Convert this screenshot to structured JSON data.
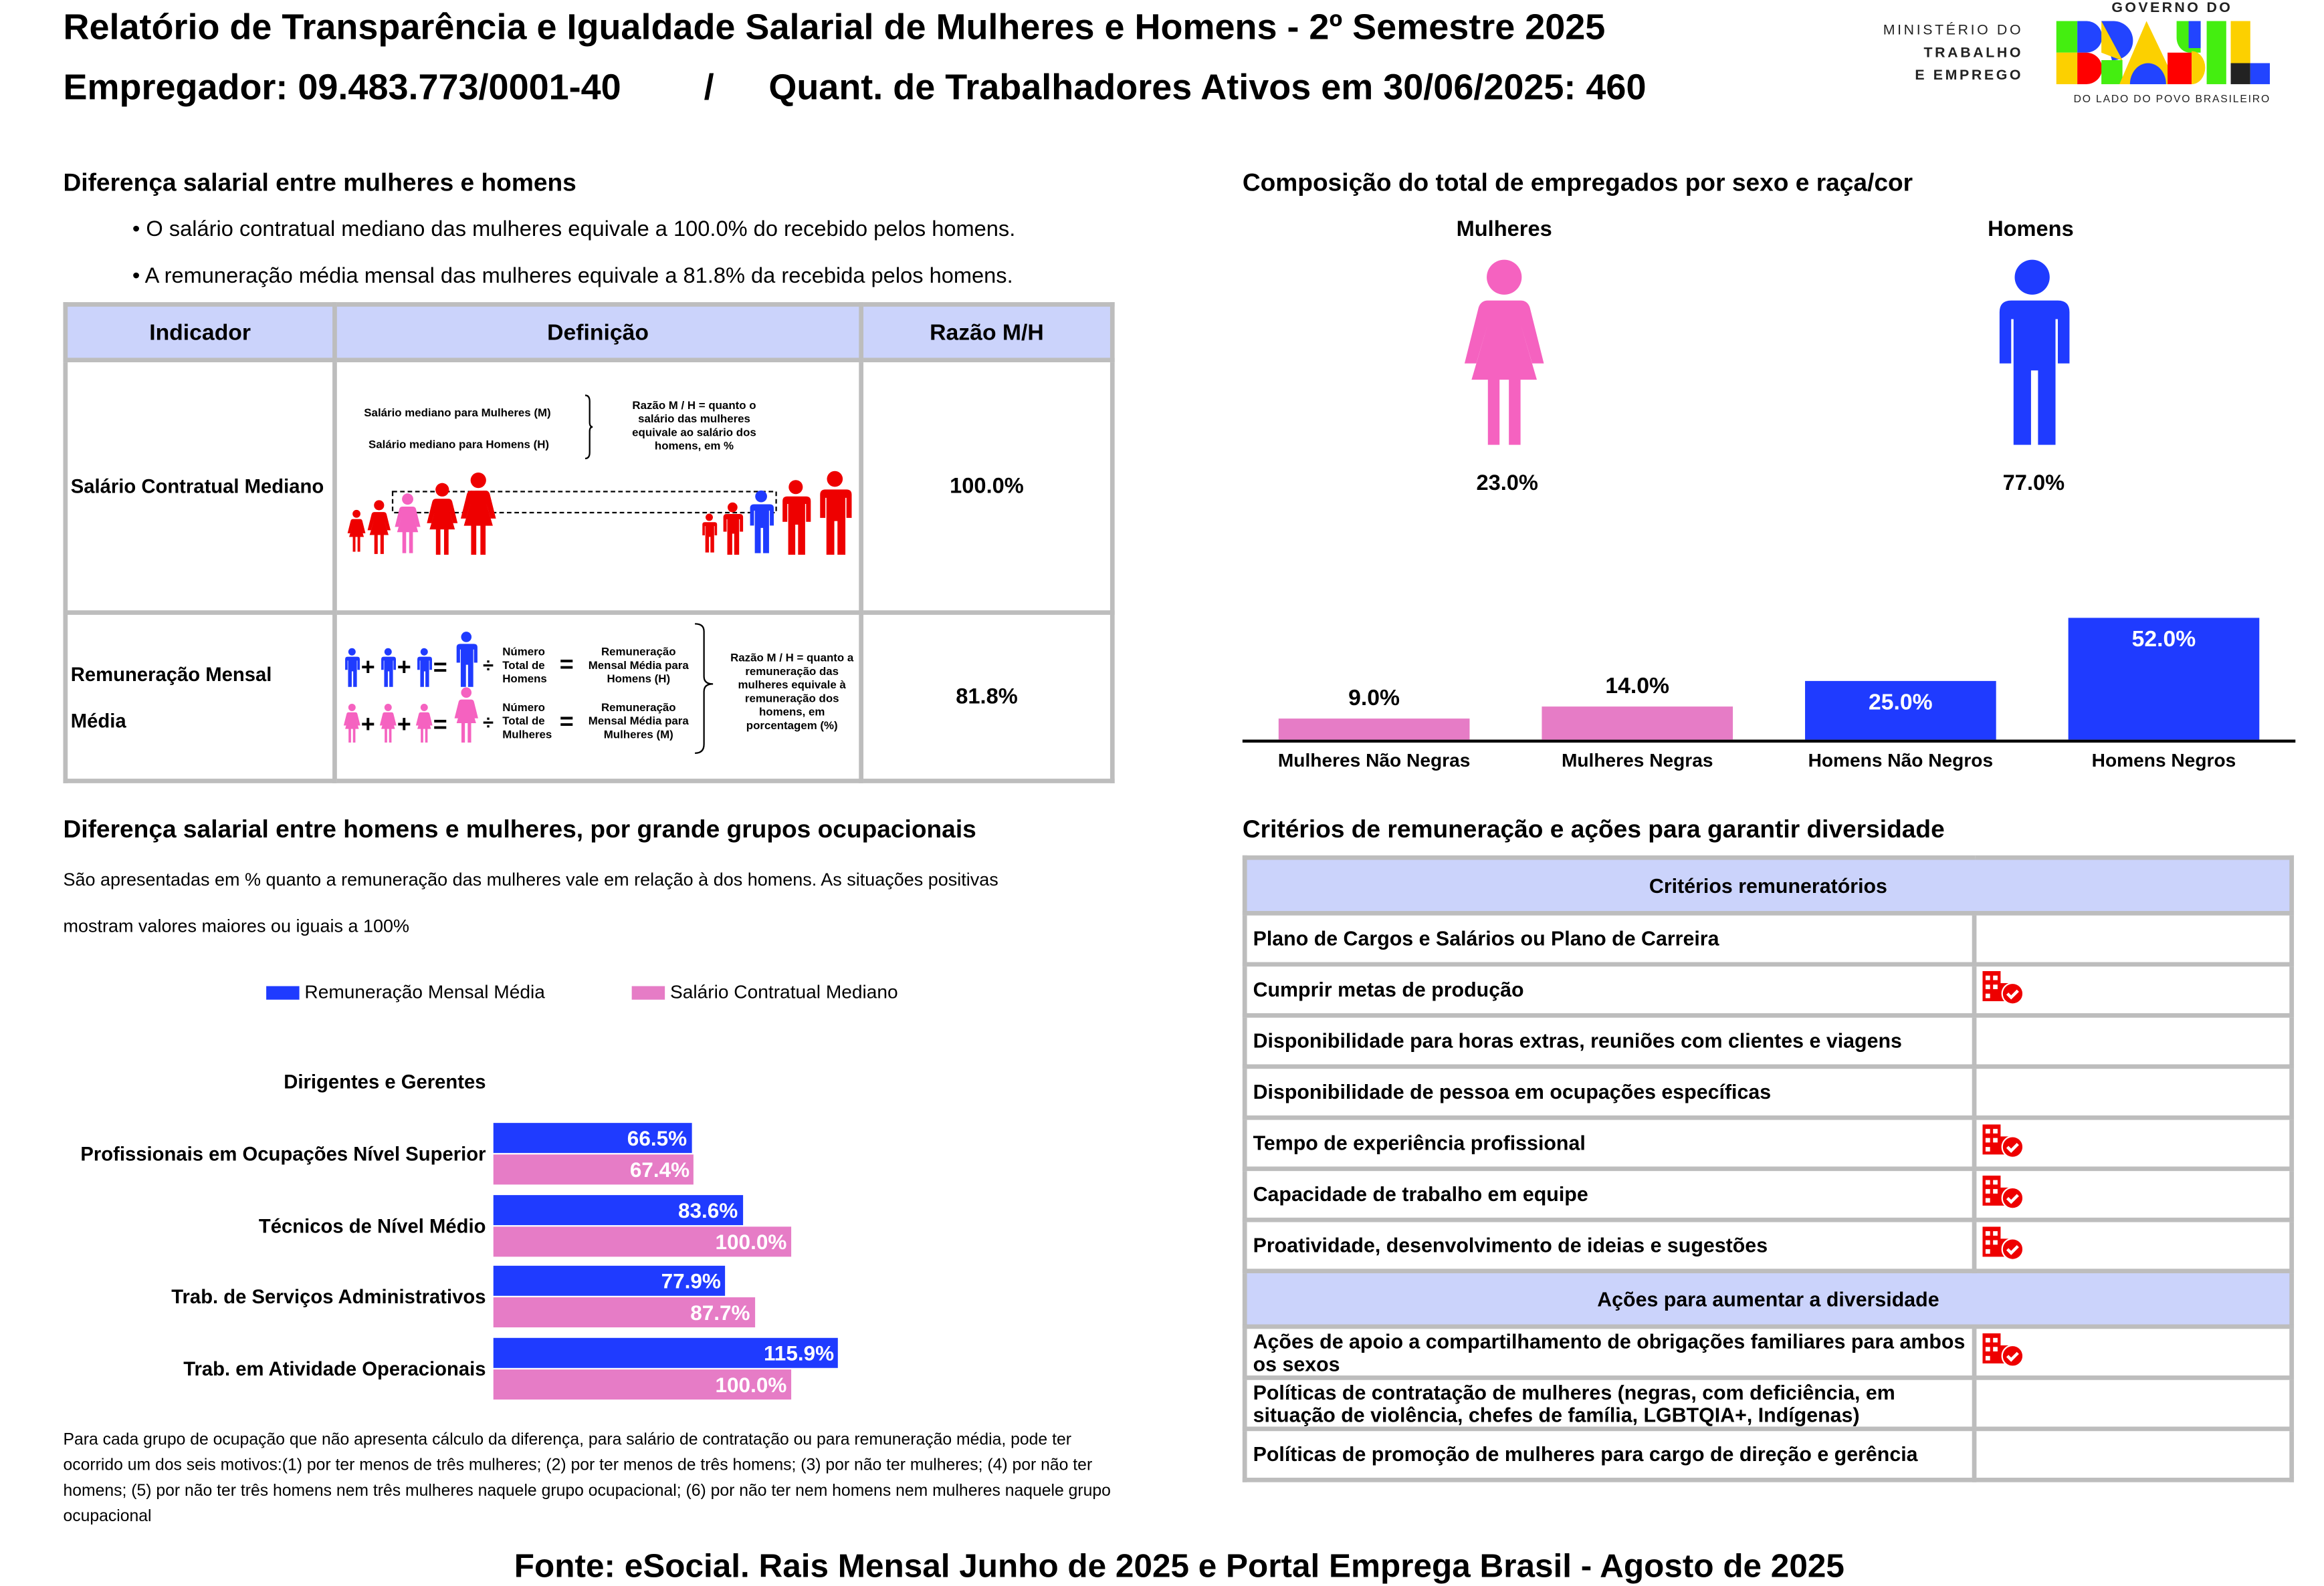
{
  "header": {
    "title": "Relatório de Transparência e Igualdade Salarial de Mulheres e Homens - 2º Semestre 2025",
    "employer": "Empregador: 09.483.773/0001-40",
    "separator": "/",
    "workers": "Quant. de Trabalhadores Ativos em 30/06/2025: 460",
    "logo_ministry": [
      "MINISTÉRIO DO",
      "TRABALHO",
      "E EMPREGO"
    ],
    "logo_gov_top": "GOVERNO DO",
    "logo_gov_word": "BRASIL",
    "logo_gov_bottom": "DO LADO DO POVO BRASILEIRO"
  },
  "salary_gap": {
    "title": "Diferença salarial entre mulheres e homens",
    "bullets": [
      "• O salário contratual mediano das mulheres equivale a 100.0% do recebido pelos homens.",
      "• A remuneração média mensal das mulheres equivale a 81.8% da recebida pelos homens."
    ],
    "table": {
      "headers": [
        "Indicador",
        "Definição",
        "Razão M/H"
      ],
      "rows": [
        {
          "indicator": "Salário Contratual Mediano",
          "ratio": "100.0%"
        },
        {
          "indicator": "Remuneração Mensal Média",
          "ratio": "81.8%"
        }
      ],
      "diagram1": {
        "label_m": "Salário mediano para Mulheres (M)",
        "label_h": "Salário mediano para Homens (H)",
        "ratio_text": "Razão M / H = quanto o salário das mulheres equivale ao salário dos homens, em %"
      },
      "diagram2": {
        "total_h": "Número Total de Homens",
        "total_m": "Número Total de Mulheres",
        "avg_h": "Remuneração Mensal Média para Homens (H)",
        "avg_m": "Remuneração Mensal Média para Mulheres (M)",
        "ratio_text": "Razão M / H = quanto a remuneração das mulheres equivale à remuneração dos homens, em porcentagem (%)"
      }
    }
  },
  "composition": {
    "title": "Composição do total de empregados por sexo e raça/cor",
    "women_label": "Mulheres",
    "men_label": "Homens",
    "women_pct": "23.0%",
    "men_pct": "77.0%",
    "chart_data": {
      "type": "bar",
      "categories": [
        "Mulheres Não Negras",
        "Mulheres Negras",
        "Homens Não Negros",
        "Homens Negros"
      ],
      "values": [
        9.0,
        14.0,
        25.0,
        52.0
      ],
      "labels": [
        "9.0%",
        "14.0%",
        "25.0%",
        "52.0%"
      ],
      "colors": [
        "#e67cc6",
        "#e67cc6",
        "#1f3bff",
        "#1f3bff"
      ],
      "ylim": [
        0,
        52
      ]
    }
  },
  "occupations": {
    "title": "Diferença salarial entre homens e mulheres, por grande grupos ocupacionais",
    "desc": "São apresentadas em % quanto a remuneração das mulheres vale em relação à dos homens. As situações positivas",
    "desc2": "mostram valores maiores ou iguais a 100%",
    "chart_data": {
      "type": "bar",
      "orientation": "horizontal",
      "categories": [
        "Dirigentes e Gerentes",
        "Profissionais em Ocupações Nível Superior",
        "Técnicos de Nível Médio",
        "Trab. de Serviços Administrativos",
        "Trab. em Atividade Operacionais"
      ],
      "series": [
        {
          "name": "Remuneração Mensal Média",
          "color": "#1f3bff",
          "values": [
            null,
            66.5,
            83.6,
            77.9,
            115.9
          ],
          "labels": [
            "",
            "66.5%",
            "83.6%",
            "77.9%",
            "115.9%"
          ]
        },
        {
          "name": "Salário Contratual Mediano",
          "color": "#e67cc6",
          "values": [
            null,
            67.4,
            100.0,
            87.7,
            100.0
          ],
          "labels": [
            "",
            "67.4%",
            "100.0%",
            "87.7%",
            "100.0%"
          ]
        }
      ],
      "legend": "top"
    },
    "note": "Para cada grupo de ocupação que não apresenta cálculo da diferença, para salário de contratação ou para remuneração média, pode ter ocorrido um dos seis motivos:(1) por ter menos de três mulheres; (2) por ter menos de três homens; (3) por não ter mulheres; (4) por não ter homens; (5) por não ter três homens nem três mulheres naquele grupo ocupacional; (6) por não ter nem homens nem mulheres naquele grupo ocupacional"
  },
  "criteria": {
    "title": "Critérios de remuneração e ações para garantir diversidade",
    "header1": "Critérios remuneratórios",
    "items1": [
      {
        "label": "Plano de Cargos e Salários ou Plano de Carreira",
        "checked": false
      },
      {
        "label": "Cumprir metas de produção",
        "checked": true
      },
      {
        "label": "Disponibilidade para horas extras, reuniões com clientes e viagens",
        "checked": false
      },
      {
        "label": "Disponibilidade de pessoa em ocupações específicas",
        "checked": false
      },
      {
        "label": "Tempo de experiência profissional",
        "checked": true
      },
      {
        "label": "Capacidade de trabalho em equipe",
        "checked": true
      },
      {
        "label": "Proatividade, desenvolvimento de ideias e sugestões",
        "checked": true
      }
    ],
    "header2": "Ações para aumentar a diversidade",
    "items2": [
      {
        "label": "Ações de apoio a compartilhamento de obrigações familiares para ambos os sexos",
        "checked": true
      },
      {
        "label": "Políticas de contratação de mulheres (negras, com deficiência, em situação de violência, chefes de família, LGBTQIA+, Indígenas)",
        "checked": false
      },
      {
        "label": "Políticas de promoção de mulheres para cargo de direção e gerência",
        "checked": false
      }
    ],
    "icon": "company-check-icon"
  },
  "footer": "Fonte: eSocial. Rais Mensal Junho de 2025 e Portal Emprega Brasil - Agosto de 2025",
  "colors": {
    "blue": "#1f3bff",
    "pink": "#e67cc6",
    "woman_figure": "#f562c0",
    "red": "#ee0000",
    "header_bg": "#cbd3fb"
  }
}
